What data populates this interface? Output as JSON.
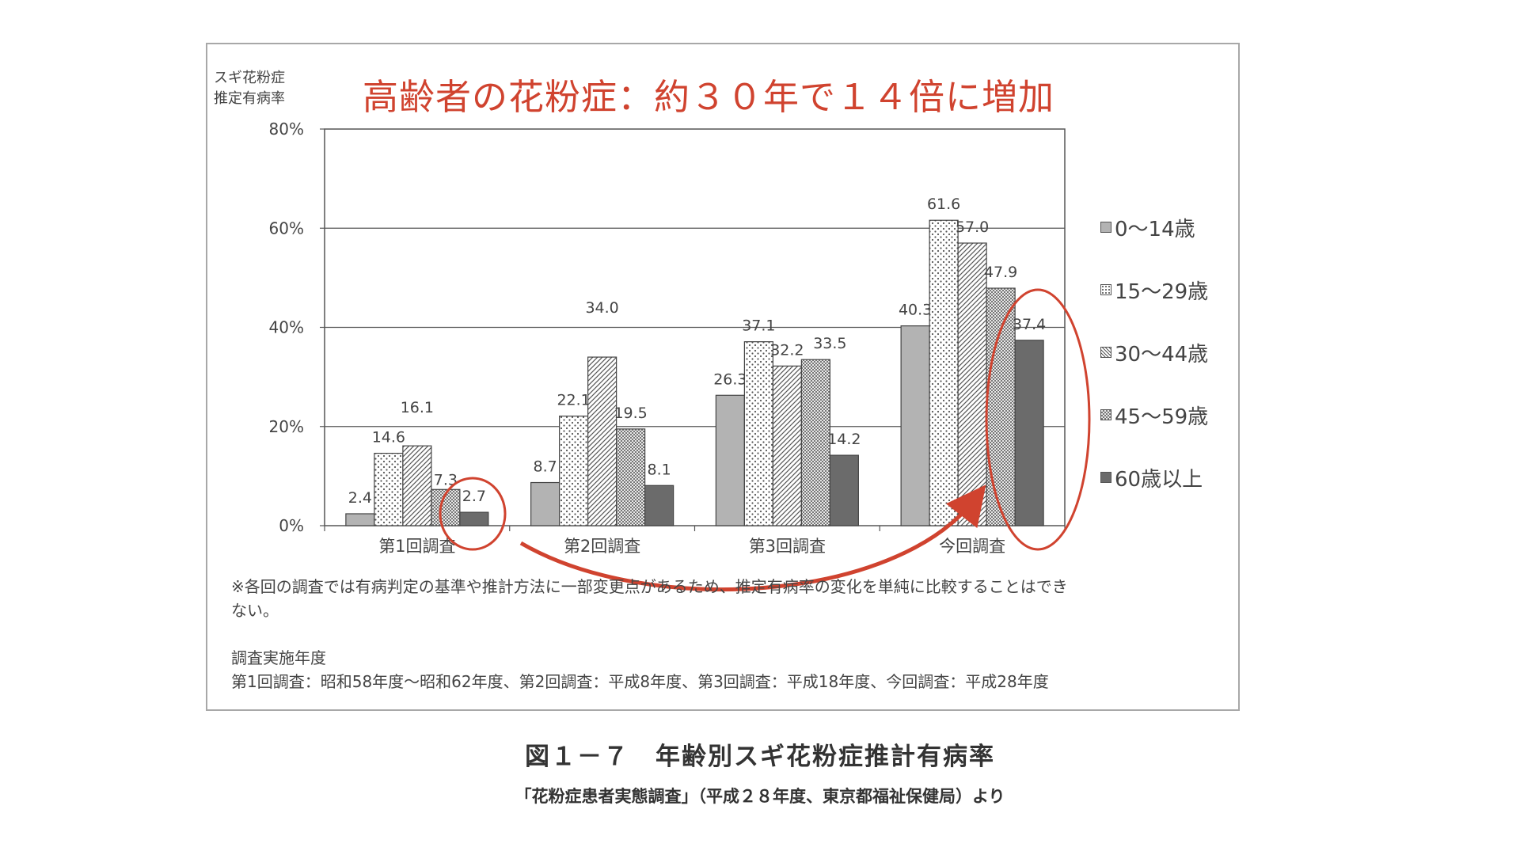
{
  "headline": "高齢者の花粉症：約３０年で１４倍に増加",
  "y_title_line1": "スギ花粉症",
  "y_title_line2": "推定有病率",
  "chart_data": {
    "type": "bar",
    "categories": [
      "第1回調査",
      "第2回調査",
      "第3回調査",
      "今回調査"
    ],
    "y_ticks": [
      "0%",
      "20%",
      "40%",
      "60%",
      "80%"
    ],
    "ylim": [
      0,
      80
    ],
    "grid": true,
    "legend_position": "right",
    "series": [
      {
        "name": "0〜14歳",
        "values": [
          2.4,
          8.7,
          26.3,
          40.3
        ],
        "labels": [
          "2.4",
          "8.7",
          "26.3",
          "40.3"
        ]
      },
      {
        "name": "15〜29歳",
        "values": [
          14.6,
          22.1,
          37.1,
          61.6
        ],
        "labels": [
          "14.6",
          "22.1",
          "37.1",
          "61.6"
        ]
      },
      {
        "name": "30〜44歳",
        "values": [
          16.1,
          34.0,
          32.2,
          57.0
        ],
        "labels": [
          "16.1",
          "34.0",
          "32.2",
          "57.0"
        ]
      },
      {
        "name": "45〜59歳",
        "values": [
          7.3,
          19.5,
          33.5,
          47.9
        ],
        "labels": [
          "7.3",
          "19.5",
          "33.5",
          "47.9"
        ]
      },
      {
        "name": "60歳以上",
        "values": [
          2.7,
          8.1,
          14.2,
          37.4
        ],
        "labels": [
          "2.7",
          "8.1",
          "14.2",
          "37.4"
        ]
      }
    ],
    "series_colors": [
      "#b3b3b3",
      "#ffffff",
      "#e0e0e0",
      "#cfcfcf",
      "#6b6b6b"
    ],
    "annotation_color": "#d0432f"
  },
  "notes": {
    "line1": "※各回の調査では有病判定の基準や推計方法に一部変更点があるため、推定有病率の変化を単純に比較することはでき",
    "line2": "ない。",
    "line3": "調査実施年度",
    "line4": "第1回調査：昭和58年度〜昭和62年度、第2回調査：平成8年度、第3回調査：平成18年度、今回調査：平成28年度"
  },
  "caption": {
    "title": "図１－７　年齢別スギ花粉症推計有病率",
    "source": "「花粉症患者実態調査」（平成２８年度、東京都福祉保健局）より"
  }
}
